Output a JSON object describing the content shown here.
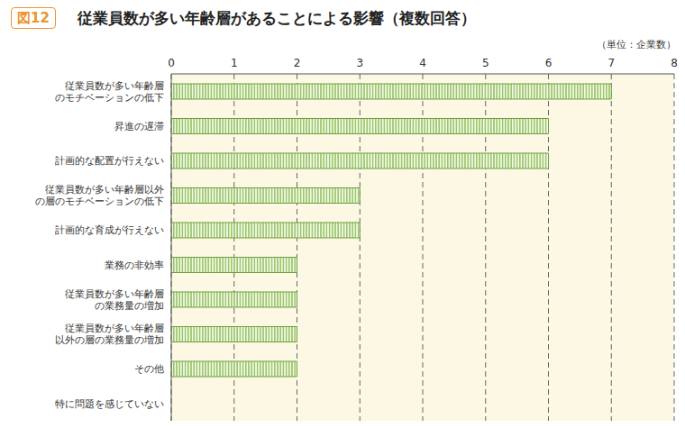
{
  "chart_data": {
    "type": "bar",
    "orientation": "horizontal",
    "title": "従業員数が多い年齢層があることによる影響（複数回答）",
    "annotations": [
      "図12",
      "（単位：企業数）"
    ],
    "categories": [
      "従業員数が多い年齢層\nのモチベーションの低下",
      "昇進の遅滞",
      "計画的な配置が行えない",
      "従業員数が多い年齢層以外\nの層のモチベーションの低下",
      "計画的な育成が行えない",
      "業務の非効率",
      "従業員数が多い年齢層\nの業務量の増加",
      "従業員数が多い年齢層\n以外の層の業務量の増加",
      "その他",
      "特に問題を感じていない"
    ],
    "values": [
      7,
      6,
      6,
      3,
      3,
      2,
      2,
      2,
      2,
      0
    ],
    "color": "#9cc66b",
    "xlim": [
      0,
      8
    ],
    "xticks": [
      0,
      1,
      2,
      3,
      4,
      5,
      6,
      7,
      8
    ],
    "grid": true
  }
}
